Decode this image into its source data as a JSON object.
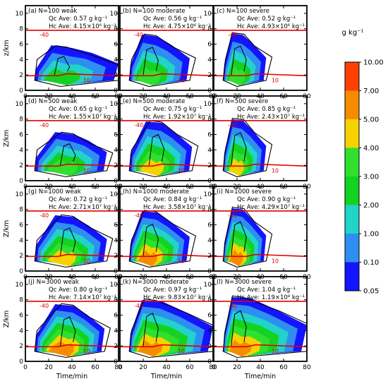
{
  "chart_data": {
    "type": "area",
    "colorbar": {
      "unit": "g kg⁻¹",
      "levels": [
        "0.05",
        "0.10",
        "1.00",
        "2.00",
        "3.00",
        "4.00",
        "5.00",
        "7.00",
        "10.00"
      ],
      "colors": [
        "#1414ff",
        "#2e8ff0",
        "#22d3c9",
        "#14d222",
        "#2fe02f",
        "#f6d200",
        "#f58c00",
        "#ff4000"
      ]
    },
    "x": {
      "label": "Time/min",
      "ticks": [
        "0",
        "20",
        "40",
        "60",
        "80"
      ],
      "range": [
        0,
        80
      ]
    },
    "y": {
      "ticks": [
        "0",
        "2",
        "4",
        "6",
        "8",
        "10"
      ],
      "range": [
        0,
        11
      ]
    },
    "row_ylabels": [
      "z/km",
      "Z/km",
      "Z/km",
      "Z/km"
    ],
    "isotherms": {
      "upper": "-40",
      "lower": "10",
      "upper_z_km": 7.8,
      "lower_z_km": 1.9
    },
    "panels": [
      {
        "tag": "(a)",
        "N": "N=100",
        "case": "weak",
        "qc": "Qc Ave: 0.57 g kg⁻¹",
        "hc": "Hc Ave: 4.15×10⁶ kg⁻¹",
        "peak_min": 30,
        "end_min": 80,
        "top_km": 5.5
      },
      {
        "tag": "(b)",
        "N": "N=100",
        "case": "moderate",
        "qc": "Qc Ave: 0.56 g kg⁻¹",
        "hc": "Hc Ave: 4.75×10⁶ kg⁻¹",
        "peak_min": 25,
        "end_min": 60,
        "top_km": 7.0
      },
      {
        "tag": "(c)",
        "N": "N=100",
        "case": "severe",
        "qc": "Qc Ave: 0.52 g kg⁻¹",
        "hc": "Hc Ave: 4.93×10⁶ kg⁻¹",
        "peak_min": 20,
        "end_min": 45,
        "top_km": 7.2
      },
      {
        "tag": "(d)",
        "N": "N=500",
        "case": "weak",
        "qc": "Qc Ave: 0.65 g kg⁻¹",
        "hc": "Hc Ave: 1.55×10⁷ kg⁻¹",
        "peak_min": 35,
        "end_min": 70,
        "top_km": 6.0
      },
      {
        "tag": "(e)",
        "N": "N=500",
        "case": "moderate",
        "qc": "Qc Ave: 0.75 g kg⁻¹",
        "hc": "Hc Ave: 1.92×10⁷ kg⁻¹",
        "peak_min": 30,
        "end_min": 62,
        "top_km": 7.5
      },
      {
        "tag": "(f)",
        "N": "N=500",
        "case": "severe",
        "qc": "Qc Ave: 0.85 g kg⁻¹",
        "hc": "Hc Ave: 2.43×10⁷ kg⁻¹",
        "peak_min": 20,
        "end_min": 45,
        "top_km": 7.8
      },
      {
        "tag": "(g)",
        "N": "N=1000",
        "case": "weak",
        "qc": "Qc Ave: 0.72 g kg⁻¹",
        "hc": "Hc Ave: 2.71×10⁷ kg⁻¹",
        "peak_min": 35,
        "end_min": 70,
        "top_km": 7.0
      },
      {
        "tag": "(h)",
        "N": "N=1000",
        "case": "moderate",
        "qc": "Qc Ave: 0.84 g kg⁻¹",
        "hc": "Hc Ave: 3.58×10⁷ kg⁻¹",
        "peak_min": 25,
        "end_min": 60,
        "top_km": 7.6
      },
      {
        "tag": "(i)",
        "N": "N=1000",
        "case": "severe",
        "qc": "Qc Ave: 0.90 g kg⁻¹",
        "hc": "Hc Ave: 4.29×10⁷ kg⁻¹",
        "peak_min": 20,
        "end_min": 45,
        "top_km": 8.0
      },
      {
        "tag": "(j)",
        "N": "N=3000",
        "case": "weak",
        "qc": "Qc Ave: 0.80 g kg⁻¹",
        "hc": "Hc Ave: 7.14×10⁷ kg⁻¹",
        "peak_min": 35,
        "end_min": 68,
        "top_km": 7.2
      },
      {
        "tag": "(k)",
        "N": "N=3000",
        "case": "moderate",
        "qc": "Qc Ave: 0.97 g kg⁻¹",
        "hc": "Hc Ave: 9.83×10⁷ kg⁻¹",
        "peak_min": 25,
        "end_min": 80,
        "top_km": 7.8
      },
      {
        "tag": "(l)",
        "N": "N=3000",
        "case": "severe",
        "qc": "Qc Ave: 1.04 g kg⁻¹",
        "hc": "Hc Ave: 1.19×10⁸ kg⁻¹",
        "peak_min": 20,
        "end_min": 80,
        "top_km": 8.2
      }
    ]
  }
}
